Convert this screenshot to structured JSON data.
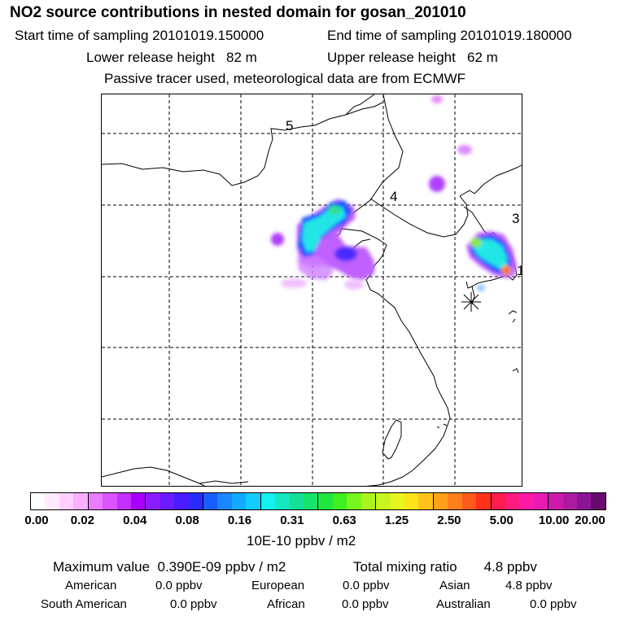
{
  "header": {
    "title": "NO2 source contributions in nested domain for gosan_201010",
    "start_label": "Start time of sampling",
    "start_value": "20101019.150000",
    "end_label": "End time of sampling",
    "end_value": "20101019.180000",
    "lower_label": "Lower release height",
    "lower_value": "82 m",
    "upper_label": "Upper release height",
    "upper_value": "62 m",
    "note": "Passive tracer used, meteorological data are from ECMWF"
  },
  "map": {
    "labels": [
      "5",
      "4",
      "3",
      "1"
    ],
    "colors": {
      "coast": "#000000",
      "grid": "#000000",
      "magenta": "#d400ff",
      "blue": "#1f4dff",
      "cyan": "#22e6e6"
    }
  },
  "colorbar": {
    "colors": [
      "#ffffff",
      "#ffeaff",
      "#ffd0ff",
      "#f8b0ff",
      "#e97cff",
      "#d955ff",
      "#c22fff",
      "#a800ff",
      "#8a1cff",
      "#6a1cff",
      "#4a1cff",
      "#2a2cff",
      "#1a5dff",
      "#1a86ff",
      "#10aaff",
      "#12ccff",
      "#13f0f0",
      "#14e6c0",
      "#15df96",
      "#17e36b",
      "#20e640",
      "#40ef1f",
      "#78f61f",
      "#a8f41f",
      "#c8f51f",
      "#e8f61f",
      "#ffe21a",
      "#ffc21a",
      "#ffa11a",
      "#ff7f1a",
      "#ff5a1a",
      "#ff301a",
      "#ff1a50",
      "#ff1a7e",
      "#ff1aa6",
      "#e91ab4",
      "#cc1aaa",
      "#aa1aa0",
      "#8c1496",
      "#6a0a70"
    ],
    "ticks": [
      "0.00",
      "0.02",
      "0.04",
      "0.08",
      "0.16",
      "0.31",
      "0.63",
      "1.25",
      "2.50",
      "5.00",
      "10.00",
      "20.00"
    ],
    "units": "10E-10 ppbv / m2"
  },
  "stats": {
    "max_label": "Maximum value",
    "max_value": "0.390E-09 ppbv / m2",
    "total_label": "Total mixing ratio",
    "total_value": "4.8 ppbv",
    "regions": [
      {
        "name": "American",
        "value": "0.0 ppbv"
      },
      {
        "name": "European",
        "value": "0.0 ppbv"
      },
      {
        "name": "Asian",
        "value": "4.8 ppbv"
      },
      {
        "name": "South American",
        "value": "0.0 ppbv"
      },
      {
        "name": "African",
        "value": "0.0 ppbv"
      },
      {
        "name": "Australian",
        "value": "0.0 ppbv"
      }
    ]
  }
}
